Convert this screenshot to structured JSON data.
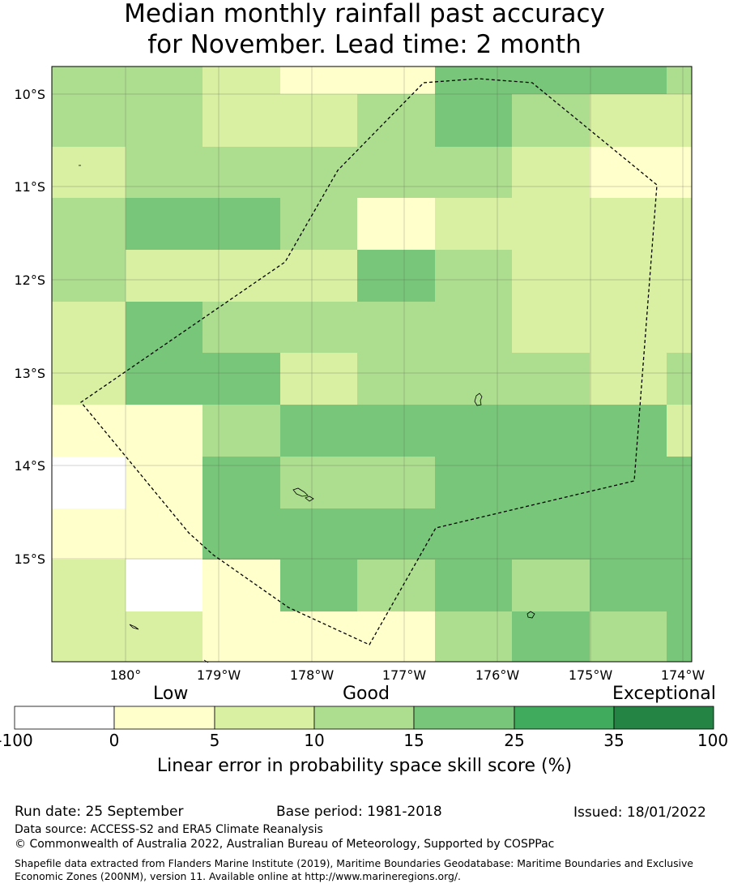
{
  "title": {
    "line1": "Median monthly rainfall past accuracy",
    "line2": "for November. Lead time: 2 month"
  },
  "map": {
    "lat_labels": [
      "10°S",
      "11°S",
      "12°S",
      "13°S",
      "14°S",
      "15°S"
    ],
    "lon_labels": [
      "180°",
      "179°W",
      "178°W",
      "177°W",
      "176°W",
      "175°W",
      "174°W"
    ],
    "grid_classes": [
      [
        3,
        3,
        2,
        1,
        1,
        4,
        4,
        4,
        3
      ],
      [
        3,
        3,
        2,
        2,
        3,
        4,
        3,
        2,
        2
      ],
      [
        2,
        3,
        3,
        3,
        3,
        3,
        2,
        1,
        1
      ],
      [
        3,
        4,
        4,
        3,
        1,
        2,
        2,
        2,
        2
      ],
      [
        3,
        2,
        2,
        2,
        4,
        3,
        2,
        2,
        2
      ],
      [
        2,
        4,
        3,
        3,
        3,
        3,
        2,
        2,
        2
      ],
      [
        2,
        4,
        4,
        2,
        3,
        3,
        3,
        2,
        3
      ],
      [
        1,
        1,
        3,
        4,
        4,
        4,
        4,
        4,
        2
      ],
      [
        0,
        1,
        4,
        3,
        3,
        4,
        4,
        4,
        4
      ],
      [
        1,
        1,
        4,
        4,
        4,
        4,
        4,
        4,
        4
      ],
      [
        2,
        0,
        1,
        4,
        3,
        4,
        3,
        4,
        4
      ],
      [
        2,
        2,
        1,
        1,
        1,
        3,
        4,
        3,
        4
      ]
    ],
    "colors": [
      "#ffffff",
      "#ffffcc",
      "#d9f0a3",
      "#addd8e",
      "#78c679",
      "#41ab5d",
      "#238443"
    ]
  },
  "colorbar": {
    "category_labels": [
      "Low",
      "Good",
      "Exceptional"
    ],
    "ticks": [
      "-100",
      "0",
      "5",
      "10",
      "15",
      "25",
      "35",
      "100"
    ],
    "title": "Linear error in probability space skill score (%)"
  },
  "footer": {
    "run_date": "Run date: 25 September",
    "base_period": "Base period: 1981-2018",
    "issued": "Issued: 18/01/2022",
    "data_source": "Data source: ACCESS-S2 and ERA5 Climate Reanalysis",
    "copyright": "© Commonwealth of Australia 2022, Australian Bureau of Meteorology, Supported by COSPPac",
    "shapefile": "Shapefile data extracted from Flanders Marine Institute (2019), Maritime Boundaries Geodatabase: Maritime Boundaries and Exclusive Economic Zones (200NM), version 11. Available online at http://www.marineregions.org/."
  }
}
